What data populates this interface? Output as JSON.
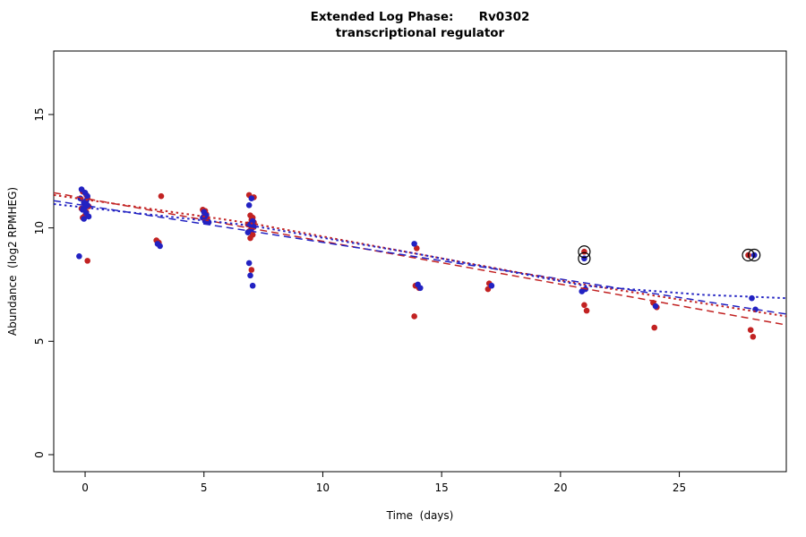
{
  "title": {
    "line1": "Extended Log Phase:      Rv0302",
    "line2": "transcriptional regulator"
  },
  "chart_data": {
    "type": "scatter",
    "title": "Extended Log Phase: Rv0302",
    "subtitle": "transcriptional regulator",
    "xlabel": "Time  (days)",
    "ylabel": "Abundance  (log2 RPMHEG)",
    "xlim": [
      -1.32,
      29.5
    ],
    "ylim": [
      -0.75,
      17.8
    ],
    "xticks": [
      0,
      5,
      10,
      15,
      20,
      25
    ],
    "yticks": [
      0,
      5,
      10,
      15
    ],
    "grid": false,
    "legend": "none",
    "colors": {
      "red": "#c22222",
      "blue": "#2222c2",
      "outlier_ring": "#000000"
    },
    "series": [
      {
        "name": "red-points",
        "color": "#c22222",
        "points": [
          [
            -0.1,
            11.6
          ],
          [
            0.05,
            11.45
          ],
          [
            0.1,
            11.3
          ],
          [
            -0.05,
            11.15
          ],
          [
            0,
            11.05
          ],
          [
            0.15,
            10.95
          ],
          [
            -0.15,
            10.85
          ],
          [
            0.05,
            10.7
          ],
          [
            0,
            10.55
          ],
          [
            -0.1,
            10.45
          ],
          [
            0.1,
            8.55
          ],
          [
            3.0,
            9.45
          ],
          [
            3.1,
            9.35
          ],
          [
            3.2,
            11.4
          ],
          [
            4.95,
            10.8
          ],
          [
            5.05,
            10.75
          ],
          [
            5.1,
            10.6
          ],
          [
            5.0,
            10.5
          ],
          [
            5.15,
            10.35
          ],
          [
            6.9,
            11.45
          ],
          [
            7.1,
            11.35
          ],
          [
            6.95,
            10.55
          ],
          [
            7.05,
            10.45
          ],
          [
            7.0,
            10.35
          ],
          [
            7.1,
            10.25
          ],
          [
            6.85,
            10.15
          ],
          [
            7.0,
            10.0
          ],
          [
            6.9,
            9.85
          ],
          [
            7.05,
            9.7
          ],
          [
            6.95,
            9.55
          ],
          [
            7.0,
            8.15
          ],
          [
            13.95,
            9.1
          ],
          [
            13.9,
            7.45
          ],
          [
            14.05,
            7.35
          ],
          [
            13.85,
            6.1
          ],
          [
            17.0,
            7.55
          ],
          [
            16.95,
            7.3
          ],
          [
            21.0,
            8.95
          ],
          [
            21.0,
            6.6
          ],
          [
            21.1,
            6.35
          ],
          [
            23.9,
            6.7
          ],
          [
            24.05,
            6.5
          ],
          [
            23.95,
            5.6
          ],
          [
            27.9,
            8.8
          ],
          [
            28.0,
            5.5
          ],
          [
            28.1,
            5.2
          ]
        ]
      },
      {
        "name": "blue-points",
        "color": "#2222c2",
        "points": [
          [
            -0.15,
            11.7
          ],
          [
            0,
            11.55
          ],
          [
            0.1,
            11.4
          ],
          [
            -0.2,
            11.3
          ],
          [
            0.05,
            11.2
          ],
          [
            -0.05,
            11.1
          ],
          [
            0.1,
            11.0
          ],
          [
            0,
            10.9
          ],
          [
            -0.1,
            10.8
          ],
          [
            0.05,
            10.65
          ],
          [
            0.15,
            10.5
          ],
          [
            -0.05,
            10.4
          ],
          [
            -0.25,
            8.75
          ],
          [
            3.05,
            9.3
          ],
          [
            3.15,
            9.2
          ],
          [
            5.0,
            10.7
          ],
          [
            5.1,
            10.55
          ],
          [
            4.95,
            10.45
          ],
          [
            5.05,
            10.3
          ],
          [
            5.2,
            10.25
          ],
          [
            7.0,
            11.3
          ],
          [
            6.9,
            11.0
          ],
          [
            7.05,
            10.3
          ],
          [
            6.95,
            10.15
          ],
          [
            7.1,
            10.05
          ],
          [
            7.0,
            9.95
          ],
          [
            6.85,
            9.8
          ],
          [
            6.9,
            8.45
          ],
          [
            6.95,
            7.9
          ],
          [
            7.05,
            7.45
          ],
          [
            13.85,
            9.3
          ],
          [
            14.0,
            7.5
          ],
          [
            14.1,
            7.35
          ],
          [
            17.1,
            7.45
          ],
          [
            21.0,
            8.65
          ],
          [
            21.05,
            7.3
          ],
          [
            20.9,
            7.2
          ],
          [
            24.0,
            6.55
          ],
          [
            28.15,
            8.8
          ],
          [
            28.05,
            6.9
          ],
          [
            28.2,
            6.4
          ]
        ]
      }
    ],
    "circled_outliers": [
      [
        21.0,
        8.95
      ],
      [
        21.0,
        8.65
      ],
      [
        27.9,
        8.8
      ],
      [
        28.15,
        8.8
      ]
    ],
    "lines": [
      {
        "name": "red-linear-fit",
        "color": "#c22222",
        "style": "dashed",
        "points": [
          [
            -1.32,
            11.55
          ],
          [
            29.5,
            5.72
          ]
        ]
      },
      {
        "name": "blue-linear-fit",
        "color": "#2222c2",
        "style": "dashed",
        "points": [
          [
            -1.32,
            11.2
          ],
          [
            29.5,
            6.2
          ]
        ]
      },
      {
        "name": "red-smooth-fit",
        "color": "#c22222",
        "style": "dotted",
        "points": [
          [
            -1.32,
            11.45
          ],
          [
            7,
            10.2
          ],
          [
            14,
            8.85
          ],
          [
            21,
            7.5
          ],
          [
            29.5,
            6.1
          ]
        ]
      },
      {
        "name": "blue-smooth-fit",
        "color": "#2222c2",
        "style": "dotted",
        "points": [
          [
            -1.32,
            11.05
          ],
          [
            7,
            10.1
          ],
          [
            14,
            8.85
          ],
          [
            21,
            7.45
          ],
          [
            26,
            7.05
          ],
          [
            29.5,
            6.9
          ]
        ]
      }
    ]
  }
}
